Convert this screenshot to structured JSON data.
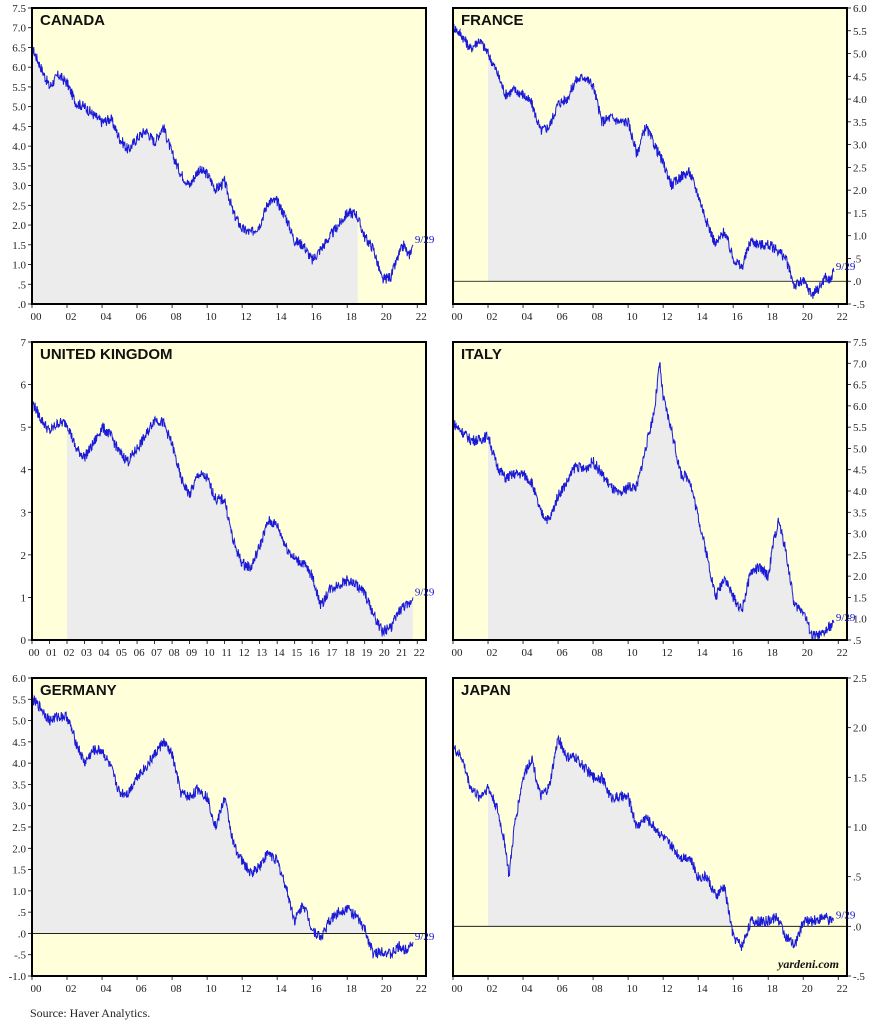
{
  "source": "Source: Haver Analytics.",
  "watermark": "yardeni.com",
  "colors": {
    "plot_bg": "#ffffd9",
    "shade": "#ececec",
    "line": "#1a1ad8",
    "frame": "#000000"
  },
  "chart_data": [
    {
      "type": "line",
      "title": "CANADA",
      "y_axis": "left",
      "ylim": [
        0,
        7.5
      ],
      "yticks": [
        0,
        0.5,
        1,
        1.5,
        2,
        2.5,
        3,
        3.5,
        4,
        4.5,
        5,
        5.5,
        6,
        6.5,
        7,
        7.5
      ],
      "ytick_labels": [
        ".0",
        ".5",
        "1.0",
        "1.5",
        "2.0",
        "2.5",
        "3.0",
        "3.5",
        "4.0",
        "4.5",
        "5.0",
        "5.5",
        "6.0",
        "6.5",
        "7.0",
        "7.5"
      ],
      "xlim": [
        2000,
        2022.5
      ],
      "xtick_labels": [
        "00",
        "02",
        "04",
        "06",
        "08",
        "10",
        "12",
        "14",
        "16",
        "18",
        "20",
        "22"
      ],
      "end_label": "9/29",
      "zero_line": false,
      "shade": [
        2000,
        2018.6
      ],
      "series": [
        {
          "x": [
            2000,
            2000.5,
            2001,
            2001.5,
            2002,
            2002.5,
            2003,
            2003.5,
            2004,
            2004.5,
            2005,
            2005.5,
            2006,
            2006.5,
            2007,
            2007.5,
            2008,
            2008.5,
            2009,
            2009.5,
            2010,
            2010.5,
            2011,
            2011.5,
            2012,
            2012.5,
            2013,
            2013.5,
            2014,
            2014.5,
            2015,
            2015.5,
            2016,
            2016.5,
            2017,
            2017.5,
            2018,
            2018.5,
            2019,
            2019.5,
            2020,
            2020.5,
            2021,
            2021.25,
            2021.5,
            2021.75
          ],
          "y": [
            6.5,
            6,
            5.5,
            5.8,
            5.6,
            5.1,
            5,
            4.8,
            4.6,
            4.7,
            4.2,
            3.9,
            4.2,
            4.4,
            4.1,
            4.5,
            3.8,
            3.3,
            3,
            3.4,
            3.3,
            2.9,
            3.1,
            2.3,
            1.9,
            1.8,
            2,
            2.6,
            2.6,
            2.2,
            1.6,
            1.5,
            1.1,
            1.4,
            1.7,
            2,
            2.3,
            2.3,
            1.7,
            1.4,
            0.6,
            0.7,
            1.3,
            1.5,
            1.2,
            1.5
          ]
        }
      ]
    },
    {
      "type": "line",
      "title": "FRANCE",
      "y_axis": "right",
      "ylim": [
        -0.5,
        6
      ],
      "yticks": [
        -0.5,
        0,
        0.5,
        1,
        1.5,
        2,
        2.5,
        3,
        3.5,
        4,
        4.5,
        5,
        5.5,
        6
      ],
      "ytick_labels": [
        "-.5",
        ".0",
        ".5",
        "1.0",
        "1.5",
        "2.0",
        "2.5",
        "3.0",
        "3.5",
        "4.0",
        "4.5",
        "5.0",
        "5.5",
        "6.0"
      ],
      "xlim": [
        2000,
        2022.5
      ],
      "xtick_labels": [
        "00",
        "02",
        "04",
        "06",
        "08",
        "10",
        "12",
        "14",
        "16",
        "18",
        "20",
        "22"
      ],
      "end_label": "9/29",
      "zero_line": true,
      "shade": [
        2002,
        2019.8
      ],
      "series": [
        {
          "x": [
            2000,
            2000.5,
            2001,
            2001.5,
            2002,
            2002.5,
            2003,
            2003.5,
            2004,
            2004.5,
            2005,
            2005.5,
            2006,
            2006.5,
            2007,
            2007.5,
            2008,
            2008.5,
            2009,
            2009.5,
            2010,
            2010.5,
            2011,
            2011.5,
            2012,
            2012.5,
            2013,
            2013.5,
            2014,
            2014.5,
            2015,
            2015.5,
            2016,
            2016.5,
            2017,
            2017.5,
            2018,
            2018.5,
            2019,
            2019.5,
            2020,
            2020.5,
            2021,
            2021.25,
            2021.5,
            2021.75
          ],
          "y": [
            5.6,
            5.4,
            5.1,
            5.3,
            5,
            4.6,
            4.1,
            4.2,
            4.1,
            3.9,
            3.3,
            3.4,
            3.9,
            4,
            4.4,
            4.5,
            4.3,
            3.5,
            3.6,
            3.5,
            3.5,
            2.8,
            3.4,
            3,
            2.6,
            2.1,
            2.3,
            2.4,
            1.9,
            1.3,
            0.8,
            1.1,
            0.5,
            0.3,
            0.9,
            0.8,
            0.8,
            0.7,
            0.5,
            -0.1,
            0,
            -0.3,
            -0.1,
            0.1,
            0,
            0.2
          ]
        }
      ]
    },
    {
      "type": "line",
      "title": "UNITED KINGDOM",
      "y_axis": "left",
      "ylim": [
        0,
        7
      ],
      "yticks": [
        0,
        1,
        2,
        3,
        4,
        5,
        6,
        7
      ],
      "ytick_labels": [
        "0",
        "1",
        "2",
        "3",
        "4",
        "5",
        "6",
        "7"
      ],
      "xlim": [
        2000,
        2022.5
      ],
      "xtick_labels": [
        "00",
        "01",
        "02",
        "03",
        "04",
        "05",
        "06",
        "07",
        "08",
        "09",
        "10",
        "11",
        "12",
        "13",
        "14",
        "15",
        "16",
        "17",
        "18",
        "19",
        "20",
        "21",
        "22"
      ],
      "end_label": "9/29",
      "zero_line": false,
      "shade": [
        2002,
        2021.8
      ],
      "series": [
        {
          "x": [
            2000,
            2000.5,
            2001,
            2001.5,
            2002,
            2002.5,
            2003,
            2003.5,
            2004,
            2004.5,
            2005,
            2005.5,
            2006,
            2006.5,
            2007,
            2007.5,
            2008,
            2008.5,
            2009,
            2009.5,
            2010,
            2010.5,
            2011,
            2011.5,
            2012,
            2012.5,
            2013,
            2013.5,
            2014,
            2014.5,
            2015,
            2015.5,
            2016,
            2016.5,
            2017,
            2017.5,
            2018,
            2018.5,
            2019,
            2019.5,
            2020,
            2020.5,
            2021,
            2021.25,
            2021.5,
            2021.75
          ],
          "y": [
            5.6,
            5.2,
            4.9,
            5.1,
            5.1,
            4.5,
            4.3,
            4.6,
            5,
            4.8,
            4.4,
            4.2,
            4.5,
            4.8,
            5.2,
            5.1,
            4.6,
            3.8,
            3.4,
            3.9,
            3.8,
            3.3,
            3.3,
            2.3,
            1.8,
            1.7,
            2.2,
            2.8,
            2.7,
            2.2,
            1.9,
            1.8,
            1.5,
            0.8,
            1.2,
            1.3,
            1.4,
            1.3,
            1.1,
            0.6,
            0.2,
            0.3,
            0.7,
            0.8,
            0.8,
            1
          ]
        }
      ]
    },
    {
      "type": "line",
      "title": "ITALY",
      "y_axis": "right",
      "ylim": [
        0.5,
        7.5
      ],
      "yticks": [
        0.5,
        1,
        1.5,
        2,
        2.5,
        3,
        3.5,
        4,
        4.5,
        5,
        5.5,
        6,
        6.5,
        7,
        7.5
      ],
      "ytick_labels": [
        ".5",
        "1.0",
        "1.5",
        "2.0",
        "2.5",
        "3.0",
        "3.5",
        "4.0",
        "4.5",
        "5.0",
        "5.5",
        "6.0",
        "6.5",
        "7.0",
        "7.5"
      ],
      "xlim": [
        2000,
        2022.5
      ],
      "xtick_labels": [
        "00",
        "02",
        "04",
        "06",
        "08",
        "10",
        "12",
        "14",
        "16",
        "18",
        "20",
        "22"
      ],
      "end_label": "9/29",
      "zero_line": false,
      "shade": [
        2002,
        2020.5
      ],
      "series": [
        {
          "x": [
            2000,
            2000.5,
            2001,
            2001.5,
            2002,
            2002.5,
            2003,
            2003.5,
            2004,
            2004.5,
            2005,
            2005.5,
            2006,
            2006.5,
            2007,
            2007.5,
            2008,
            2008.5,
            2009,
            2009.5,
            2010,
            2010.5,
            2011,
            2011.5,
            2011.8,
            2012,
            2012.5,
            2013,
            2013.5,
            2014,
            2014.5,
            2015,
            2015.5,
            2016,
            2016.5,
            2017,
            2017.5,
            2018,
            2018.3,
            2018.6,
            2019,
            2019.5,
            2020,
            2020.5,
            2021,
            2021.25,
            2021.5,
            2021.75
          ],
          "y": [
            5.6,
            5.4,
            5.2,
            5.2,
            5.3,
            4.6,
            4.3,
            4.4,
            4.4,
            4.2,
            3.5,
            3.3,
            3.9,
            4.2,
            4.6,
            4.5,
            4.7,
            4.4,
            4.1,
            3.9,
            4.1,
            4.1,
            5,
            5.9,
            7,
            6.2,
            5.4,
            4.4,
            4.3,
            3.4,
            2.5,
            1.5,
            2,
            1.5,
            1.2,
            2.1,
            2.2,
            2,
            2.8,
            3.3,
            2.6,
            1.3,
            1.2,
            0.6,
            0.6,
            0.7,
            0.8,
            0.9
          ]
        }
      ]
    },
    {
      "type": "line",
      "title": "GERMANY",
      "y_axis": "left",
      "ylim": [
        -1.0,
        6
      ],
      "yticks": [
        -1,
        -0.5,
        0,
        0.5,
        1,
        1.5,
        2,
        2.5,
        3,
        3.5,
        4,
        4.5,
        5,
        5.5,
        6
      ],
      "ytick_labels": [
        "-1.0",
        "-.5",
        ".0",
        ".5",
        "1.0",
        "1.5",
        "2.0",
        "2.5",
        "3.0",
        "3.5",
        "4.0",
        "4.5",
        "5.0",
        "5.5",
        "6.0"
      ],
      "xlim": [
        2000,
        2022.5
      ],
      "xtick_labels": [
        "00",
        "02",
        "04",
        "06",
        "08",
        "10",
        "12",
        "14",
        "16",
        "18",
        "20",
        "22"
      ],
      "end_label": "9/29",
      "zero_line": true,
      "shade": [
        2000,
        2022.3
      ],
      "series": [
        {
          "x": [
            2000,
            2000.5,
            2001,
            2001.5,
            2002,
            2002.5,
            2003,
            2003.5,
            2004,
            2004.5,
            2005,
            2005.5,
            2006,
            2006.5,
            2007,
            2007.5,
            2008,
            2008.5,
            2009,
            2009.5,
            2010,
            2010.5,
            2011,
            2011.5,
            2012,
            2012.5,
            2013,
            2013.5,
            2014,
            2014.5,
            2015,
            2015.5,
            2016,
            2016.5,
            2017,
            2017.5,
            2018,
            2018.5,
            2019,
            2019.5,
            2020,
            2020.5,
            2021,
            2021.25,
            2021.5,
            2021.75
          ],
          "y": [
            5.5,
            5.3,
            5,
            5.1,
            5.1,
            4.5,
            4,
            4.3,
            4.3,
            3.9,
            3.3,
            3.3,
            3.7,
            3.9,
            4.2,
            4.5,
            4.2,
            3.3,
            3.2,
            3.4,
            3.2,
            2.5,
            3.2,
            2.1,
            1.7,
            1.4,
            1.6,
            1.9,
            1.7,
            1.1,
            0.3,
            0.7,
            0.1,
            -0.1,
            0.3,
            0.5,
            0.6,
            0.4,
            0.1,
            -0.5,
            -0.4,
            -0.5,
            -0.3,
            -0.4,
            -0.3,
            -0.2
          ]
        }
      ]
    },
    {
      "type": "line",
      "title": "JAPAN",
      "y_axis": "right",
      "ylim": [
        -0.5,
        2.5
      ],
      "yticks": [
        -0.5,
        0,
        0.5,
        1,
        1.5,
        2,
        2.5
      ],
      "ytick_labels": [
        "-.5",
        ".0",
        ".5",
        "1.0",
        "1.5",
        "2.0",
        "2.5"
      ],
      "xlim": [
        2000,
        2022.5
      ],
      "xtick_labels": [
        "00",
        "02",
        "04",
        "06",
        "08",
        "10",
        "12",
        "14",
        "16",
        "18",
        "20",
        "22"
      ],
      "end_label": "9/29",
      "zero_line": true,
      "shade": [
        2002,
        2016
      ],
      "series": [
        {
          "x": [
            2000,
            2000.5,
            2001,
            2001.5,
            2002,
            2002.5,
            2003,
            2003.2,
            2003.5,
            2004,
            2004.5,
            2005,
            2005.5,
            2006,
            2006.5,
            2007,
            2007.5,
            2008,
            2008.5,
            2009,
            2009.5,
            2010,
            2010.5,
            2011,
            2011.5,
            2012,
            2012.5,
            2013,
            2013.5,
            2014,
            2014.5,
            2015,
            2015.5,
            2016,
            2016.5,
            2017,
            2017.5,
            2018,
            2018.5,
            2019,
            2019.5,
            2020,
            2020.5,
            2021,
            2021.25,
            2021.5,
            2021.75
          ],
          "y": [
            1.8,
            1.7,
            1.4,
            1.3,
            1.4,
            1.2,
            0.8,
            0.5,
            1,
            1.5,
            1.7,
            1.3,
            1.4,
            1.9,
            1.7,
            1.7,
            1.6,
            1.5,
            1.5,
            1.3,
            1.3,
            1.3,
            1,
            1.1,
            1,
            0.9,
            0.8,
            0.7,
            0.7,
            0.5,
            0.5,
            0.3,
            0.4,
            -0.1,
            -0.2,
            0.05,
            0.05,
            0.05,
            0.1,
            -0.1,
            -0.2,
            0.05,
            0.05,
            0.08,
            0.1,
            0.05,
            0.06
          ]
        }
      ]
    }
  ]
}
